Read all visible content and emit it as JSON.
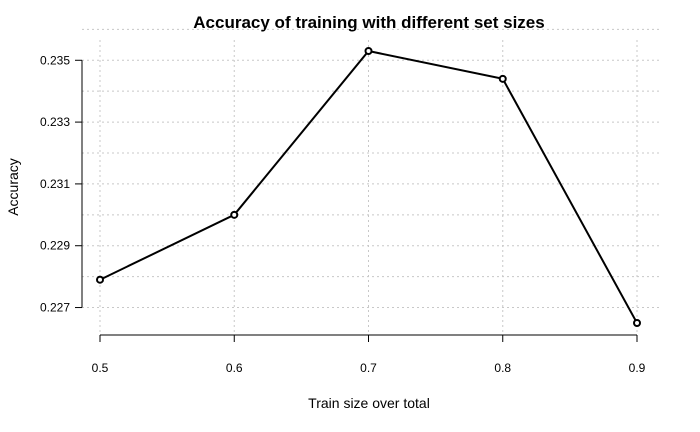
{
  "chart_data": {
    "type": "line",
    "title": "Accuracy of training with different set sizes",
    "xlabel": "Train size over total",
    "ylabel": "Accuracy",
    "x": [
      0.5,
      0.6,
      0.7,
      0.8,
      0.9
    ],
    "series": [
      {
        "values": [
          0.2279,
          0.23,
          0.2353,
          0.2344,
          0.2265
        ]
      }
    ],
    "x_ticks": [
      "0.5",
      "0.6",
      "0.7",
      "0.8",
      "0.9"
    ],
    "y_ticks": [
      "0.227",
      "0.229",
      "0.231",
      "0.233",
      "0.235"
    ],
    "xlim": [
      0.5,
      0.9
    ],
    "ylim": [
      0.2265,
      0.2353
    ],
    "grid": true,
    "markers": "open-circle",
    "line_color": "#000000"
  }
}
